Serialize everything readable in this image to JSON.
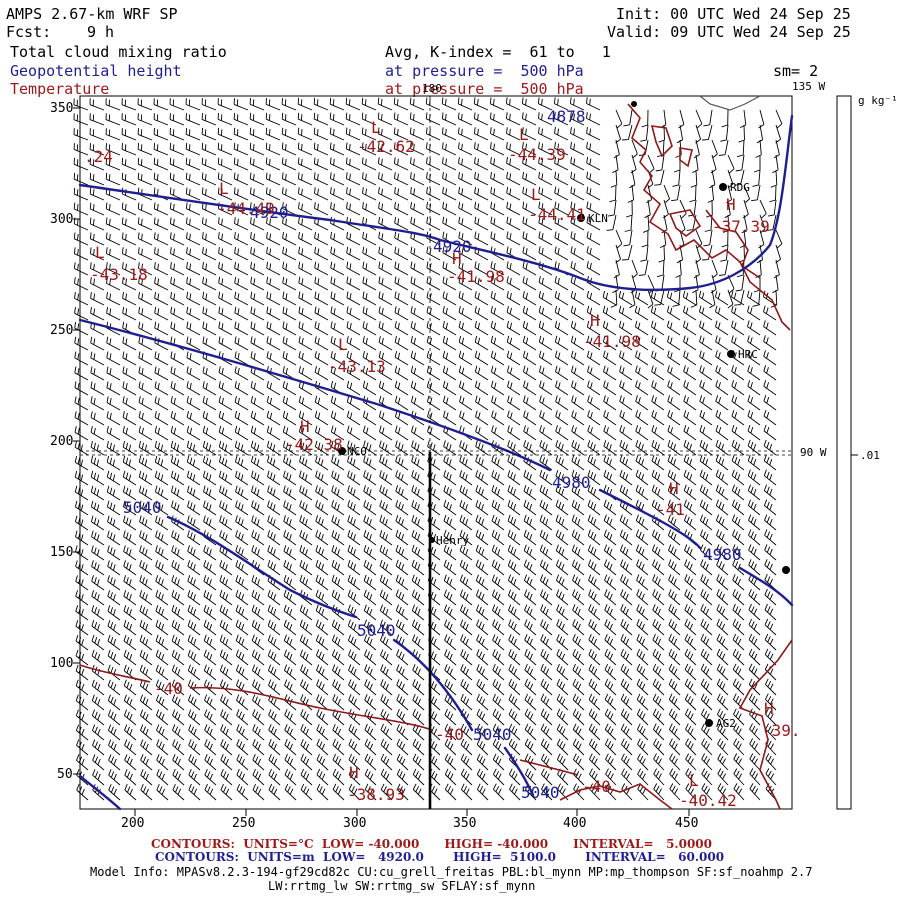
{
  "header": {
    "model_title": "AMPS 2.67-km WRF SP",
    "fcst_label": "Fcst:",
    "fcst_value": "9 h",
    "init": "Init: 00 UTC Wed 24 Sep 25",
    "valid": "Valid: 09 UTC Wed 24 Sep 25",
    "field1": "Total cloud mixing ratio",
    "field2": "Geopotential height",
    "field3": "Temperature",
    "avg_label": "Avg, K-index =  61 to   1",
    "pressure_label_1": "at pressure =  500 hPa",
    "pressure_label_2": "at pressure =  500 hPa",
    "smoothing": "sm= 2"
  },
  "colors": {
    "height_contour": "#1f1f8f",
    "temperature_contour": "#9a1a1a",
    "coast": "#8b1a1a",
    "wind_barbs": "#000000"
  },
  "axes": {
    "x_ticks": [
      "200",
      "250",
      "300",
      "350",
      "400",
      "450"
    ],
    "y_ticks": [
      "350",
      "300",
      "250",
      "200",
      "150",
      "100",
      "50"
    ],
    "lon_180": "180",
    "lon_135w": "135 W",
    "lon_90w": "90 W"
  },
  "colorbar": {
    "units": "g kg⁻¹",
    "tick": ".01"
  },
  "stations": [
    {
      "id": "KLN",
      "label": "KLN"
    },
    {
      "id": "RDG",
      "label": "RDG"
    },
    {
      "id": "HRC",
      "label": "HRC"
    },
    {
      "id": "NCO",
      "label": "NCO"
    },
    {
      "id": "Henry",
      "label": "Henry"
    },
    {
      "id": "AG2",
      "label": "AG2"
    }
  ],
  "height_labels": [
    "4878",
    "4920",
    "4920",
    "4980",
    "4980",
    "5040",
    "5040",
    "5040",
    "5040"
  ],
  "temperature_labels": [
    "-40",
    "-40",
    "-40",
    "-39."
  ],
  "extrema": [
    {
      "kind": "L",
      "value": "-42.62"
    },
    {
      "kind": "L",
      "value": "-44.39"
    },
    {
      "kind": "L",
      "value": "-44.41"
    },
    {
      "kind": "L",
      "value": "-44.49"
    },
    {
      "kind": "L",
      "value": "-43.18"
    },
    {
      "kind": "L",
      "value": "-43.13"
    },
    {
      "kind": "H",
      "value": "-41.98"
    },
    {
      "kind": "H",
      "value": "-41.98"
    },
    {
      "kind": "H",
      "value": "-37.39"
    },
    {
      "kind": "H",
      "value": "-42.38"
    },
    {
      "kind": "H",
      "value": "-41"
    },
    {
      "kind": "H",
      "value": "-38.93"
    },
    {
      "kind": "L",
      "value": "-40.42"
    },
    {
      "kind": "H",
      "value": "-39."
    },
    {
      "kind": "",
      "value": ".24"
    }
  ],
  "footer": {
    "contours_temp": "CONTOURS:  UNITS=°C  LOW= -40.000      HIGH= -40.000      INTERVAL=   5.0000",
    "contours_height": "CONTOURS:  UNITS=m  LOW=   4920.0       HIGH=  5100.0       INTERVAL=   60.000",
    "model_info_1": "Model Info: MPASv8.2.3-194-gf29cd82c CU:cu_grell_freitas PBL:bl_mynn MP:mp_thompson SF:sf_noahmp 2.7",
    "model_info_2": "LW:rrtmg_lw SW:rrtmg_sw SFLAY:sf_mynn"
  }
}
